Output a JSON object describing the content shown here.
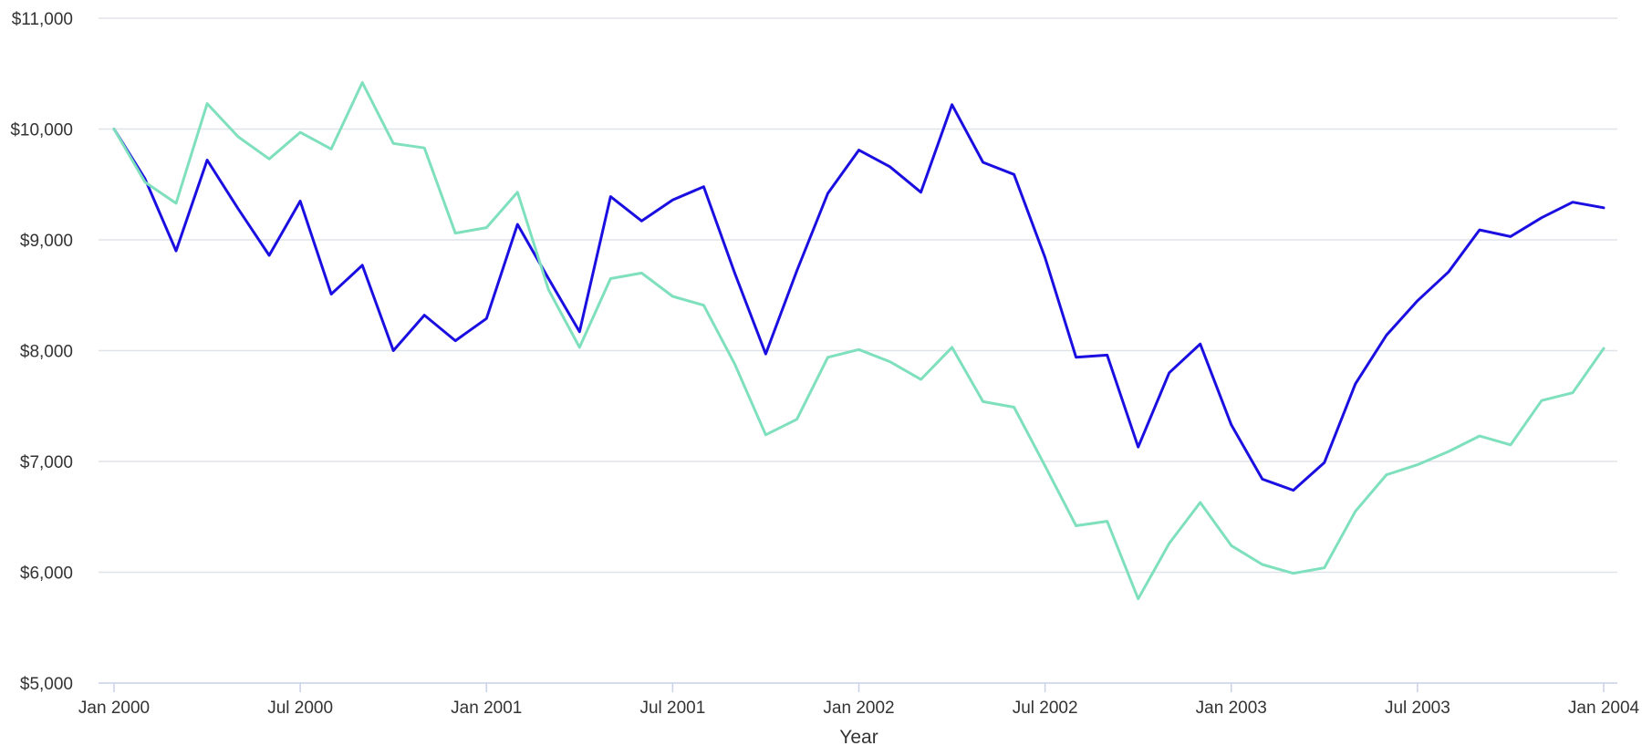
{
  "chart_data": {
    "type": "line",
    "xlabel": "Year",
    "ylabel": "",
    "ylim": [
      5000,
      11000
    ],
    "xlim": [
      "2000-01",
      "2004-01"
    ],
    "grid": "horizontal",
    "y_ticks": [
      5000,
      6000,
      7000,
      8000,
      9000,
      10000,
      11000
    ],
    "y_tick_labels": [
      "$5,000",
      "$6,000",
      "$7,000",
      "$8,000",
      "$9,000",
      "$10,000",
      "$11,000"
    ],
    "x_ticks": [
      "2000-01",
      "2000-07",
      "2001-01",
      "2001-07",
      "2002-01",
      "2002-07",
      "2003-01",
      "2003-07",
      "2004-01"
    ],
    "x_tick_labels": [
      "Jan 2000",
      "Jul 2000",
      "Jan 2001",
      "Jul 2001",
      "Jan 2002",
      "Jul 2002",
      "Jan 2003",
      "Jul 2003",
      "Jan 2004"
    ],
    "x": [
      "2000-01",
      "2000-02",
      "2000-03",
      "2000-04",
      "2000-05",
      "2000-06",
      "2000-07",
      "2000-08",
      "2000-09",
      "2000-10",
      "2000-11",
      "2000-12",
      "2001-01",
      "2001-02",
      "2001-03",
      "2001-04",
      "2001-05",
      "2001-06",
      "2001-07",
      "2001-08",
      "2001-09",
      "2001-10",
      "2001-11",
      "2001-12",
      "2002-01",
      "2002-02",
      "2002-03",
      "2002-04",
      "2002-05",
      "2002-06",
      "2002-07",
      "2002-08",
      "2002-09",
      "2002-10",
      "2002-11",
      "2002-12",
      "2003-01",
      "2003-02",
      "2003-03",
      "2003-04",
      "2003-05",
      "2003-06",
      "2003-07",
      "2003-08",
      "2003-09",
      "2003-10",
      "2003-11",
      "2003-12",
      "2004-01"
    ],
    "series": [
      {
        "color": "#1a0fe0",
        "values": [
          10000,
          9550,
          8900,
          9720,
          9280,
          8860,
          9350,
          8510,
          8770,
          8000,
          8320,
          8090,
          8290,
          9140,
          8650,
          8170,
          9390,
          9170,
          9360,
          9480,
          8700,
          7970,
          8720,
          9420,
          9810,
          9660,
          9430,
          10220,
          9700,
          9590,
          8840,
          7940,
          7960,
          7130,
          7800,
          8060,
          7330,
          6840,
          6740,
          6990,
          7700,
          8140,
          8450,
          8710,
          9090,
          9030,
          9200,
          9340,
          9290
        ]
      },
      {
        "color": "#7fe0bd",
        "values": [
          10000,
          9520,
          9330,
          10230,
          9930,
          9730,
          9970,
          9820,
          10420,
          9870,
          9830,
          9060,
          9110,
          9430,
          8550,
          8030,
          8650,
          8700,
          8490,
          8410,
          7880,
          7240,
          7380,
          7940,
          8010,
          7900,
          7740,
          8030,
          7540,
          7490,
          6960,
          6420,
          6460,
          5760,
          6260,
          6630,
          6240,
          6070,
          5990,
          6040,
          6550,
          6880,
          6970,
          7090,
          7230,
          7150,
          7550,
          7620,
          8020
        ]
      }
    ]
  }
}
